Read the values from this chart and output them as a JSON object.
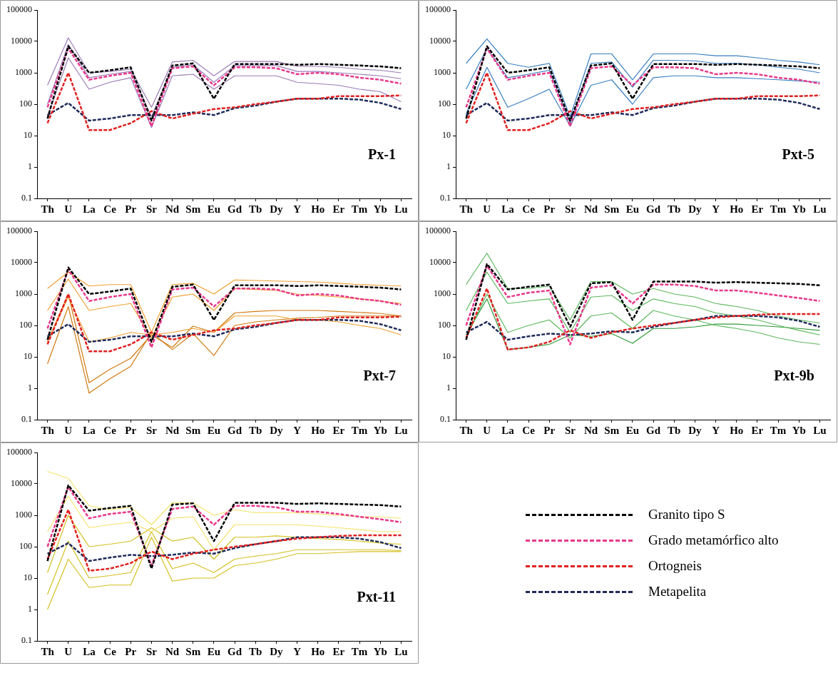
{
  "chart_data": [
    {
      "type": "line",
      "categories": [
        "Th",
        "U",
        "La",
        "Ce",
        "Pr",
        "Sr",
        "Nd",
        "Sm",
        "Eu",
        "Gd",
        "Tb",
        "Dy",
        "Y",
        "Ho",
        "Er",
        "Tm",
        "Yb",
        "Lu"
      ],
      "log": "y",
      "ylim": [
        0.1,
        100000
      ],
      "yticks": [
        0.1,
        1,
        10,
        100,
        1000,
        10000,
        100000
      ],
      "grid": false,
      "marker": "none",
      "annotations": [
        "Px-1"
      ],
      "series": [
        {
          "color": "#9b7bb8",
          "line_style": "solid",
          "values": [
            400,
            13000,
            1000,
            1100,
            1300,
            80,
            2200,
            2500,
            800,
            2300,
            2300,
            2300,
            1600,
            1600,
            1500,
            1300,
            1200,
            1000
          ]
        },
        {
          "color": "#9b7bb8",
          "line_style": "solid",
          "values": [
            100,
            8000,
            700,
            900,
            1100,
            40,
            1500,
            1800,
            500,
            1700,
            1700,
            1700,
            1100,
            1100,
            1000,
            900,
            800,
            650
          ]
        },
        {
          "color": "#9b7bb8",
          "line_style": "solid",
          "values": [
            40,
            3000,
            300,
            500,
            700,
            18,
            800,
            900,
            300,
            800,
            800,
            800,
            500,
            450,
            400,
            300,
            250,
            120
          ]
        },
        {
          "color": "#000000",
          "line_style": "dashed",
          "values": [
            35,
            7000,
            1000,
            1200,
            1500,
            30,
            1700,
            2000,
            150,
            1900,
            1900,
            1900,
            1800,
            1900,
            1800,
            1700,
            1600,
            1400
          ]
        },
        {
          "color": "#e8388a",
          "line_style": "dashed",
          "values": [
            80,
            6000,
            600,
            800,
            1000,
            20,
            1400,
            1600,
            400,
            1500,
            1500,
            1400,
            900,
            1000,
            900,
            700,
            600,
            450
          ]
        },
        {
          "color": "#e02020",
          "line_style": "dashed",
          "values": [
            25,
            1000,
            15,
            15,
            25,
            60,
            35,
            50,
            70,
            80,
            100,
            120,
            150,
            150,
            180,
            180,
            180,
            190
          ]
        },
        {
          "color": "#1f2a5a",
          "line_style": "dashed",
          "values": [
            45,
            110,
            30,
            35,
            45,
            45,
            45,
            55,
            45,
            75,
            90,
            120,
            150,
            150,
            150,
            140,
            110,
            70
          ]
        }
      ]
    },
    {
      "type": "line",
      "categories": [
        "Th",
        "U",
        "La",
        "Ce",
        "Pr",
        "Sr",
        "Nd",
        "Sm",
        "Eu",
        "Gd",
        "Tb",
        "Dy",
        "Y",
        "Ho",
        "Er",
        "Tm",
        "Yb",
        "Lu"
      ],
      "log": "y",
      "ylim": [
        0.1,
        100000
      ],
      "yticks": [
        0.1,
        1,
        10,
        100,
        1000,
        10000,
        100000
      ],
      "grid": false,
      "marker": "none",
      "annotations": [
        "Pxt-5"
      ],
      "series": [
        {
          "color": "#3a7fc1",
          "line_style": "solid",
          "values": [
            2000,
            12000,
            2000,
            1500,
            2000,
            40,
            4000,
            4000,
            600,
            4000,
            4000,
            4000,
            3500,
            3500,
            3000,
            2500,
            2200,
            1800
          ]
        },
        {
          "color": "#3a7fc1",
          "line_style": "solid",
          "values": [
            300,
            6000,
            700,
            900,
            1200,
            25,
            2000,
            2200,
            350,
            2500,
            2500,
            2400,
            2000,
            2000,
            1800,
            1500,
            1300,
            1000
          ]
        },
        {
          "color": "#3a7fc1",
          "line_style": "solid",
          "values": [
            50,
            1500,
            80,
            150,
            300,
            20,
            400,
            600,
            100,
            700,
            800,
            800,
            700,
            700,
            650,
            600,
            550,
            500
          ]
        },
        {
          "color": "#000000",
          "line_style": "dashed",
          "values": [
            35,
            7000,
            1000,
            1200,
            1500,
            30,
            1700,
            2000,
            150,
            1900,
            1900,
            1900,
            1800,
            1900,
            1800,
            1700,
            1600,
            1400
          ]
        },
        {
          "color": "#e8388a",
          "line_style": "dashed",
          "values": [
            80,
            6000,
            600,
            800,
            1000,
            20,
            1400,
            1600,
            400,
            1500,
            1500,
            1400,
            900,
            1000,
            900,
            700,
            600,
            450
          ]
        },
        {
          "color": "#e02020",
          "line_style": "dashed",
          "values": [
            25,
            1000,
            15,
            15,
            25,
            60,
            35,
            50,
            70,
            80,
            100,
            120,
            150,
            150,
            180,
            180,
            180,
            190
          ]
        },
        {
          "color": "#1f2a5a",
          "line_style": "dashed",
          "values": [
            45,
            110,
            30,
            35,
            45,
            45,
            45,
            55,
            45,
            75,
            90,
            120,
            150,
            150,
            150,
            140,
            110,
            70
          ]
        }
      ]
    },
    {
      "type": "line",
      "categories": [
        "Th",
        "U",
        "La",
        "Ce",
        "Pr",
        "Sr",
        "Nd",
        "Sm",
        "Eu",
        "Gd",
        "Tb",
        "Dy",
        "Y",
        "Ho",
        "Er",
        "Tm",
        "Yb",
        "Lu"
      ],
      "log": "y",
      "ylim": [
        0.1,
        100000
      ],
      "yticks": [
        0.1,
        1,
        10,
        100,
        1000,
        10000,
        100000
      ],
      "grid": false,
      "marker": "none",
      "annotations": [
        "Pxt-7"
      ],
      "series": [
        {
          "color": "#f0a030",
          "line_style": "solid",
          "values": [
            1500,
            5000,
            1800,
            2000,
            2000,
            60,
            2000,
            2200,
            1000,
            2800,
            2700,
            2600,
            2500,
            2400,
            2200,
            2000,
            1900,
            1800
          ]
        },
        {
          "color": "#f0a030",
          "line_style": "solid",
          "values": [
            300,
            3000,
            300,
            400,
            500,
            40,
            800,
            1000,
            300,
            1500,
            1400,
            1300,
            1000,
            900,
            800,
            700,
            600,
            500
          ]
        },
        {
          "color": "#f0a030",
          "line_style": "solid",
          "values": [
            30,
            800,
            30,
            40,
            60,
            50,
            60,
            80,
            60,
            200,
            200,
            200,
            150,
            150,
            130,
            100,
            80,
            50
          ]
        },
        {
          "color": "#d07a10",
          "line_style": "solid",
          "values": [
            6,
            400,
            0.7,
            2,
            5,
            60,
            17,
            55,
            11,
            100,
            130,
            150,
            170,
            180,
            200,
            200,
            200,
            200
          ]
        },
        {
          "color": "#d07a10",
          "line_style": "solid",
          "values": [
            30,
            1000,
            1.5,
            4,
            9,
            50,
            20,
            95,
            60,
            250,
            280,
            300,
            300,
            300,
            280,
            260,
            240,
            200
          ]
        },
        {
          "color": "#000000",
          "line_style": "dashed",
          "values": [
            35,
            7000,
            1000,
            1200,
            1500,
            30,
            1700,
            2000,
            150,
            1900,
            1900,
            1900,
            1800,
            1900,
            1800,
            1700,
            1600,
            1400
          ]
        },
        {
          "color": "#e8388a",
          "line_style": "dashed",
          "values": [
            80,
            6000,
            600,
            800,
            1000,
            20,
            1400,
            1600,
            400,
            1500,
            1500,
            1400,
            900,
            1000,
            900,
            700,
            600,
            450
          ]
        },
        {
          "color": "#e02020",
          "line_style": "dashed",
          "values": [
            25,
            1000,
            15,
            15,
            25,
            60,
            35,
            50,
            70,
            80,
            100,
            120,
            150,
            150,
            180,
            180,
            180,
            190
          ]
        },
        {
          "color": "#1f2a5a",
          "line_style": "dashed",
          "values": [
            45,
            110,
            30,
            35,
            45,
            45,
            45,
            55,
            45,
            75,
            90,
            120,
            150,
            150,
            150,
            140,
            110,
            70
          ]
        }
      ]
    },
    {
      "type": "line",
      "categories": [
        "Th",
        "U",
        "La",
        "Ce",
        "Pr",
        "Sr",
        "Nd",
        "Sm",
        "Eu",
        "Gd",
        "Tb",
        "Dy",
        "Y",
        "Ho",
        "Er",
        "Tm",
        "Yb",
        "Lu"
      ],
      "log": "y",
      "ylim": [
        0.1,
        100000
      ],
      "yticks": [
        0.1,
        1,
        10,
        100,
        1000,
        10000,
        100000
      ],
      "grid": false,
      "marker": "none",
      "annotations": [
        "Pxt-9b"
      ],
      "series": [
        {
          "color": "#5db85d",
          "line_style": "solid",
          "values": [
            2000,
            20000,
            1500,
            1500,
            1800,
            150,
            2500,
            2500,
            1000,
            1500,
            1000,
            800,
            500,
            400,
            300,
            200,
            150,
            120
          ]
        },
        {
          "color": "#5db85d",
          "line_style": "solid",
          "values": [
            300,
            5000,
            500,
            600,
            700,
            60,
            800,
            900,
            300,
            700,
            500,
            400,
            250,
            200,
            150,
            100,
            70,
            50
          ]
        },
        {
          "color": "#5db85d",
          "line_style": "solid",
          "values": [
            40,
            1000,
            60,
            100,
            150,
            40,
            200,
            250,
            80,
            300,
            200,
            150,
            100,
            80,
            60,
            40,
            30,
            25
          ]
        },
        {
          "color": "#2e9a3a",
          "line_style": "solid",
          "values": [
            50,
            700,
            17,
            20,
            25,
            50,
            45,
            55,
            27,
            80,
            80,
            90,
            110,
            110,
            100,
            90,
            80,
            70
          ]
        },
        {
          "color": "#000000",
          "line_style": "dashed",
          "values": [
            35,
            9000,
            1400,
            1700,
            2000,
            90,
            2200,
            2400,
            150,
            2500,
            2500,
            2500,
            2300,
            2400,
            2300,
            2200,
            2100,
            1900
          ]
        },
        {
          "color": "#e8388a",
          "line_style": "dashed",
          "values": [
            100,
            8000,
            800,
            1100,
            1300,
            25,
            1600,
            1900,
            500,
            2000,
            2000,
            1800,
            1300,
            1300,
            1100,
            900,
            750,
            600
          ]
        },
        {
          "color": "#e02020",
          "line_style": "dashed",
          "values": [
            40,
            1500,
            17,
            20,
            30,
            70,
            40,
            60,
            80,
            100,
            120,
            150,
            180,
            200,
            220,
            230,
            230,
            230
          ]
        },
        {
          "color": "#1f2a5a",
          "line_style": "dashed",
          "values": [
            60,
            130,
            35,
            45,
            55,
            50,
            55,
            65,
            60,
            90,
            120,
            150,
            200,
            200,
            200,
            180,
            140,
            90
          ]
        }
      ]
    },
    {
      "type": "line",
      "categories": [
        "Th",
        "U",
        "La",
        "Ce",
        "Pr",
        "Sr",
        "Nd",
        "Sm",
        "Eu",
        "Gd",
        "Tb",
        "Dy",
        "Y",
        "Ho",
        "Er",
        "Tm",
        "Yb",
        "Lu"
      ],
      "log": "y",
      "ylim": [
        0.1,
        100000
      ],
      "yticks": [
        0.1,
        1,
        10,
        100,
        1000,
        10000,
        100000
      ],
      "grid": false,
      "marker": "none",
      "legend": "right",
      "annotations": [
        "Pxt-11"
      ],
      "series": [
        {
          "color": "#f5e36a",
          "line_style": "solid",
          "values": [
            25000,
            15000,
            2000,
            1500,
            1800,
            500,
            2500,
            2500,
            1000,
            1500,
            1200,
            1200,
            1200,
            1100,
            1000,
            900,
            900,
            800
          ]
        },
        {
          "color": "#f5e36a",
          "line_style": "solid",
          "values": [
            300,
            4000,
            400,
            500,
            600,
            300,
            800,
            900,
            80,
            500,
            500,
            500,
            500,
            450,
            400,
            350,
            300,
            300
          ]
        },
        {
          "color": "#d4c020",
          "line_style": "solid",
          "values": [
            15,
            1000,
            100,
            120,
            150,
            400,
            150,
            200,
            40,
            200,
            200,
            220,
            200,
            180,
            170,
            150,
            130,
            120
          ]
        },
        {
          "color": "#d4c020",
          "line_style": "solid",
          "values": [
            3,
            150,
            10,
            12,
            15,
            300,
            20,
            30,
            15,
            40,
            50,
            60,
            80,
            80,
            80,
            80,
            80,
            75
          ]
        },
        {
          "color": "#d4c020",
          "line_style": "solid",
          "values": [
            1,
            40,
            5,
            6,
            6,
            200,
            8,
            10,
            10,
            25,
            30,
            40,
            60,
            60,
            65,
            70,
            70,
            70
          ]
        },
        {
          "name": "Granito tipo S",
          "color": "#000000",
          "line_style": "dashed",
          "values": [
            35,
            9000,
            1400,
            1700,
            2000,
            20,
            2200,
            2400,
            150,
            2500,
            2500,
            2500,
            2300,
            2400,
            2300,
            2200,
            2100,
            1900
          ]
        },
        {
          "name": "Grado metamórfico alto",
          "color": "#e8388a",
          "line_style": "dashed",
          "values": [
            100,
            8000,
            800,
            1100,
            1300,
            25,
            1600,
            1900,
            500,
            2000,
            2000,
            1800,
            1300,
            1300,
            1100,
            900,
            750,
            600
          ]
        },
        {
          "name": "Ortogneis",
          "color": "#e02020",
          "line_style": "dashed",
          "values": [
            40,
            1500,
            17,
            20,
            30,
            70,
            40,
            60,
            80,
            100,
            120,
            150,
            180,
            200,
            220,
            230,
            230,
            230
          ]
        },
        {
          "name": "Metapelita",
          "color": "#1f2a5a",
          "line_style": "dashed",
          "values": [
            60,
            130,
            35,
            45,
            55,
            50,
            55,
            65,
            60,
            90,
            120,
            150,
            200,
            200,
            200,
            180,
            140,
            90
          ]
        }
      ]
    }
  ]
}
